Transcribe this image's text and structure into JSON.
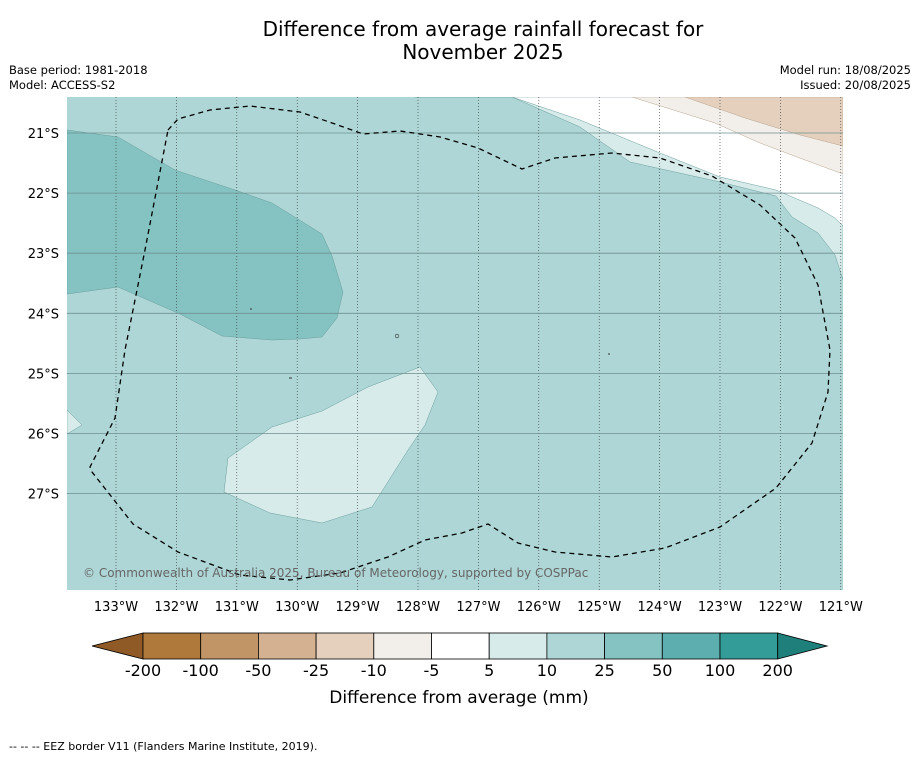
{
  "title": {
    "line1": "Difference from average rainfall forecast for",
    "line2": "November 2025"
  },
  "meta": {
    "base_period": "Base period: 1981-2018",
    "model": "Model: ACCESS-S2",
    "model_run": "Model run: 18/08/2025",
    "issued": "Issued: 20/08/2025"
  },
  "map": {
    "lon_labels": [
      "133°W",
      "132°W",
      "131°W",
      "130°W",
      "129°W",
      "128°W",
      "127°W",
      "126°W",
      "125°W",
      "124°W",
      "123°W",
      "122°W",
      "121°W"
    ],
    "lat_labels": [
      "21°S",
      "22°S",
      "23°S",
      "24°S",
      "25°S",
      "26°S",
      "27°S"
    ],
    "copyright": "© Commonwealth of Australia 2025, Bureau of Meteorology, supported by COSPPac",
    "eez_line_color": "#000000"
  },
  "colorbar": {
    "ticks": [
      "-200",
      "-100",
      "-50",
      "-25",
      "-10",
      "-5",
      "5",
      "10",
      "25",
      "50",
      "100",
      "200"
    ],
    "colors": [
      "#b0793c",
      "#c29567",
      "#d4b291",
      "#e4d0bc",
      "#f2eeea",
      "#ffffff",
      "#d6ebea",
      "#aed6d6",
      "#84c3c2",
      "#5cafae",
      "#339c98"
    ],
    "low_extend_color": "#8f5a26",
    "high_extend_color": "#1f7f7b",
    "label": "Difference from average (mm)"
  },
  "footnote": "--  --  -- EEZ border V11 (Flanders Marine Institute, 2019)."
}
